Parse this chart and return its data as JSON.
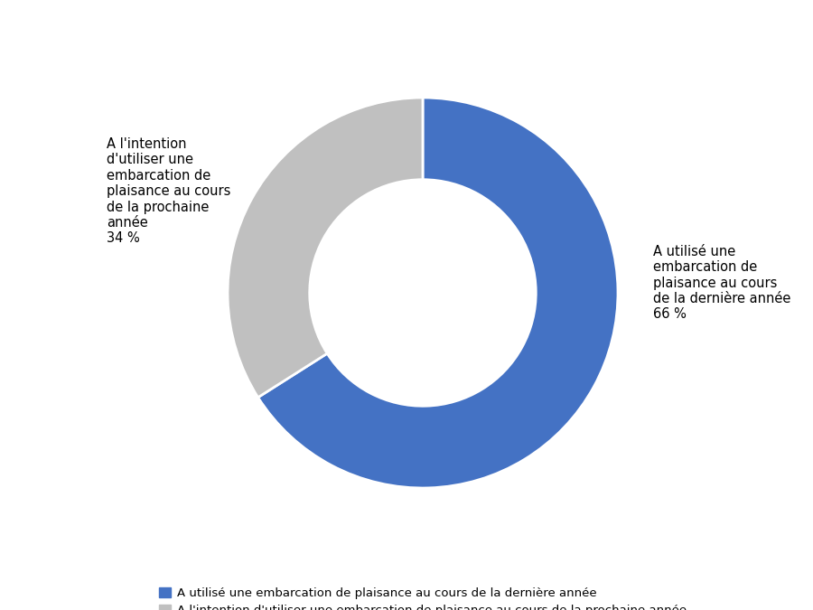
{
  "slices": [
    66,
    34
  ],
  "colors": [
    "#4472C4",
    "#C0C0C0"
  ],
  "labels_outside": [
    "A utilisé une\nembarcation de\nplaisance au cours\nde la dernière année\n66 %",
    "A l'intention\nd'utiliser une\nembarcation de\nplaisance au cours\nde la prochaine\nannée\n34 %"
  ],
  "legend_labels": [
    "A utilisé une embarcation de plaisance au cours de la dernière année",
    "A l'intention d'utiliser une embarcation de plaisance au cours de la prochaine année"
  ],
  "donut_width": 0.42,
  "start_angle": 90,
  "background_color": "#FFFFFF",
  "font_size_labels": 10.5,
  "font_size_legend": 9.5
}
